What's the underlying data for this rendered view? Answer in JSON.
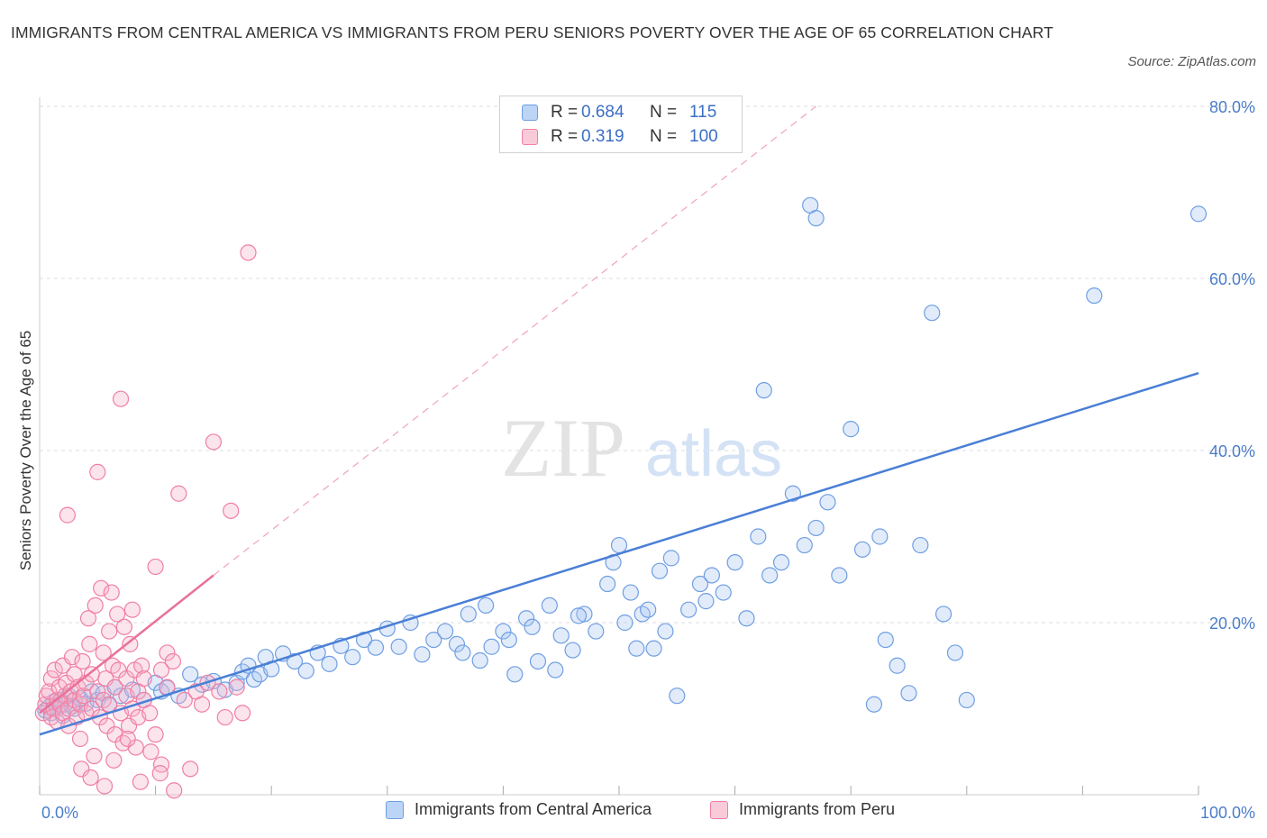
{
  "header": {
    "title": "IMMIGRANTS FROM CENTRAL AMERICA VS IMMIGRANTS FROM PERU SENIORS POVERTY OVER THE AGE OF 65 CORRELATION CHART",
    "source": "Source: ZipAtlas.com"
  },
  "legend": {
    "rows": [
      {
        "r_label": "R =",
        "r_value": "0.684",
        "n_label": "N =",
        "n_value": "115",
        "color": "#6f9fe3"
      },
      {
        "r_label": "R =",
        "r_value": "0.319",
        "n_label": "N =",
        "n_value": "100",
        "color": "#f07fa4"
      }
    ],
    "bottom": [
      "Immigrants from Central America",
      "Immigrants from Peru"
    ]
  },
  "colors": {
    "blue": "#4a7fd6",
    "pink": "#e8729a",
    "blue_fill": "#a9c6f0",
    "pink_fill": "#f5b3c8",
    "tick": "#4a7dc9"
  },
  "chart_data": {
    "type": "scatter",
    "title": "IMMIGRANTS FROM CENTRAL AMERICA VS IMMIGRANTS FROM PERU SENIORS POVERTY OVER THE AGE OF 65 CORRELATION CHART",
    "xlabel": "",
    "ylabel": "Seniors Poverty Over the Age of 65",
    "xlim": [
      0,
      100
    ],
    "ylim": [
      0,
      80
    ],
    "x_tick_labels": [
      "0.0%",
      "100.0%"
    ],
    "y_ticks": [
      20,
      40,
      60,
      80
    ],
    "y_tick_labels": [
      "20.0%",
      "40.0%",
      "60.0%",
      "80.0%"
    ],
    "grid": true,
    "watermark": "ZIPatlas",
    "series": [
      {
        "name": "Immigrants from Central America",
        "color": "#4a7fd6",
        "trend": {
          "x": [
            0,
            100
          ],
          "y": [
            7.0,
            49.0
          ]
        },
        "points": [
          [
            0.5,
            9.8
          ],
          [
            0.8,
            10.2
          ],
          [
            1.0,
            9.5
          ],
          [
            1.2,
            10.8
          ],
          [
            1.5,
            10.0
          ],
          [
            1.8,
            11.0
          ],
          [
            2.0,
            9.2
          ],
          [
            2.2,
            10.5
          ],
          [
            2.5,
            11.5
          ],
          [
            2.8,
            10.3
          ],
          [
            3.0,
            10.0
          ],
          [
            3.5,
            11.2
          ],
          [
            4.0,
            10.6
          ],
          [
            4.5,
            12.0
          ],
          [
            5.0,
            11.0
          ],
          [
            5.5,
            11.8
          ],
          [
            6.0,
            10.4
          ],
          [
            6.5,
            12.5
          ],
          [
            7.0,
            11.5
          ],
          [
            8.0,
            12.2
          ],
          [
            9.0,
            11.0
          ],
          [
            10.0,
            13.0
          ],
          [
            10.5,
            12.0
          ],
          [
            11.0,
            12.4
          ],
          [
            12.0,
            11.5
          ],
          [
            13.0,
            14.0
          ],
          [
            14.0,
            12.8
          ],
          [
            15.0,
            13.2
          ],
          [
            16.0,
            12.2
          ],
          [
            17.0,
            13.0
          ],
          [
            17.5,
            14.3
          ],
          [
            18.0,
            15.0
          ],
          [
            18.5,
            13.4
          ],
          [
            19.0,
            14.0
          ],
          [
            19.5,
            16.0
          ],
          [
            20.0,
            14.6
          ],
          [
            21.0,
            16.4
          ],
          [
            22.0,
            15.5
          ],
          [
            23.0,
            14.4
          ],
          [
            24.0,
            16.5
          ],
          [
            25.0,
            15.2
          ],
          [
            26.0,
            17.3
          ],
          [
            27.0,
            16.0
          ],
          [
            28.0,
            18.0
          ],
          [
            29.0,
            17.1
          ],
          [
            30.0,
            19.3
          ],
          [
            31.0,
            17.2
          ],
          [
            32.0,
            20.0
          ],
          [
            33.0,
            16.3
          ],
          [
            34.0,
            18.0
          ],
          [
            35.0,
            19.0
          ],
          [
            36.0,
            17.5
          ],
          [
            37.0,
            21.0
          ],
          [
            38.0,
            15.6
          ],
          [
            39.0,
            17.2
          ],
          [
            40.0,
            19.0
          ],
          [
            41.0,
            14.0
          ],
          [
            42.0,
            20.5
          ],
          [
            43.0,
            15.5
          ],
          [
            44.0,
            22.0
          ],
          [
            45.0,
            18.5
          ],
          [
            46.0,
            16.8
          ],
          [
            47.0,
            21.0
          ],
          [
            48.0,
            19.0
          ],
          [
            49.0,
            24.5
          ],
          [
            50.0,
            29.0
          ],
          [
            51.0,
            23.5
          ],
          [
            52.0,
            21.0
          ],
          [
            53.0,
            17.0
          ],
          [
            54.0,
            19.0
          ],
          [
            55.0,
            11.5
          ],
          [
            56.0,
            21.5
          ],
          [
            57.0,
            24.5
          ],
          [
            58.0,
            25.5
          ],
          [
            59.0,
            23.5
          ],
          [
            60.0,
            27.0
          ],
          [
            61.0,
            20.5
          ],
          [
            62.0,
            30.0
          ],
          [
            63.0,
            25.5
          ],
          [
            64.0,
            27.0
          ],
          [
            65.0,
            35.0
          ],
          [
            66.0,
            29.0
          ],
          [
            67.0,
            31.0
          ],
          [
            68.0,
            34.0
          ],
          [
            69.0,
            25.5
          ],
          [
            70.0,
            42.5
          ],
          [
            71.0,
            28.5
          ],
          [
            72.0,
            10.5
          ],
          [
            73.0,
            18.0
          ],
          [
            74.0,
            15.0
          ],
          [
            75.0,
            11.8
          ],
          [
            76.0,
            29.0
          ],
          [
            77.0,
            56.0
          ],
          [
            78.0,
            21.0
          ],
          [
            79.0,
            16.5
          ],
          [
            80.0,
            11.0
          ],
          [
            49.5,
            27.0
          ],
          [
            50.5,
            20.0
          ],
          [
            51.5,
            17.0
          ],
          [
            52.5,
            21.5
          ],
          [
            53.5,
            26.0
          ],
          [
            54.5,
            27.5
          ],
          [
            36.5,
            16.5
          ],
          [
            38.5,
            22.0
          ],
          [
            40.5,
            18.0
          ],
          [
            42.5,
            19.5
          ],
          [
            44.5,
            14.5
          ],
          [
            46.5,
            20.8
          ],
          [
            57.5,
            22.5
          ],
          [
            62.5,
            47.0
          ],
          [
            66.5,
            68.5
          ],
          [
            67.0,
            67.0
          ],
          [
            72.5,
            30.0
          ],
          [
            91.0,
            58.0
          ],
          [
            100.0,
            67.5
          ]
        ]
      },
      {
        "name": "Immigrants from Peru",
        "color": "#e8729a",
        "trend": {
          "x": [
            0,
            15
          ],
          "y": [
            9.5,
            25.5
          ]
        },
        "trend_extension": {
          "x": [
            15,
            67
          ],
          "y": [
            25.5,
            80.0
          ]
        },
        "points": [
          [
            0.3,
            9.5
          ],
          [
            0.5,
            10.5
          ],
          [
            0.6,
            11.5
          ],
          [
            0.8,
            12.0
          ],
          [
            1.0,
            9.0
          ],
          [
            1.0,
            13.5
          ],
          [
            1.2,
            10.0
          ],
          [
            1.3,
            14.5
          ],
          [
            1.5,
            11.0
          ],
          [
            1.5,
            8.5
          ],
          [
            1.7,
            12.5
          ],
          [
            1.8,
            10.5
          ],
          [
            2.0,
            9.5
          ],
          [
            2.0,
            15.0
          ],
          [
            2.2,
            11.5
          ],
          [
            2.3,
            13.0
          ],
          [
            2.5,
            10.0
          ],
          [
            2.5,
            8.0
          ],
          [
            2.7,
            12.0
          ],
          [
            2.8,
            16.0
          ],
          [
            3.0,
            11.0
          ],
          [
            3.0,
            14.0
          ],
          [
            3.2,
            9.0
          ],
          [
            3.3,
            12.5
          ],
          [
            3.5,
            10.5
          ],
          [
            3.5,
            6.5
          ],
          [
            3.7,
            15.5
          ],
          [
            3.8,
            11.5
          ],
          [
            4.0,
            13.0
          ],
          [
            4.0,
            9.5
          ],
          [
            4.2,
            20.5
          ],
          [
            4.3,
            17.5
          ],
          [
            4.5,
            10.0
          ],
          [
            4.5,
            14.0
          ],
          [
            4.7,
            4.5
          ],
          [
            4.8,
            22.0
          ],
          [
            5.0,
            12.0
          ],
          [
            5.0,
            37.5
          ],
          [
            5.2,
            9.0
          ],
          [
            5.3,
            24.0
          ],
          [
            5.5,
            16.5
          ],
          [
            5.5,
            11.0
          ],
          [
            5.7,
            13.5
          ],
          [
            5.8,
            8.0
          ],
          [
            6.0,
            19.0
          ],
          [
            6.0,
            10.5
          ],
          [
            6.2,
            23.5
          ],
          [
            6.3,
            15.0
          ],
          [
            6.5,
            12.5
          ],
          [
            6.5,
            7.0
          ],
          [
            6.7,
            21.0
          ],
          [
            6.8,
            14.5
          ],
          [
            7.0,
            9.5
          ],
          [
            7.0,
            46.0
          ],
          [
            7.2,
            6.0
          ],
          [
            7.3,
            19.5
          ],
          [
            7.5,
            11.5
          ],
          [
            7.5,
            13.5
          ],
          [
            7.7,
            8.0
          ],
          [
            7.8,
            17.5
          ],
          [
            8.0,
            10.0
          ],
          [
            8.0,
            21.5
          ],
          [
            8.2,
            14.5
          ],
          [
            8.3,
            5.5
          ],
          [
            8.5,
            12.0
          ],
          [
            8.5,
            9.0
          ],
          [
            8.7,
            1.5
          ],
          [
            8.8,
            15.0
          ],
          [
            9.0,
            11.0
          ],
          [
            9.0,
            13.5
          ],
          [
            9.5,
            9.5
          ],
          [
            10.0,
            26.5
          ],
          [
            10.0,
            7.0
          ],
          [
            10.5,
            14.5
          ],
          [
            10.5,
            3.5
          ],
          [
            11.0,
            12.5
          ],
          [
            11.0,
            16.5
          ],
          [
            11.5,
            15.5
          ],
          [
            12.0,
            35.0
          ],
          [
            12.5,
            11.0
          ],
          [
            13.0,
            3.0
          ],
          [
            13.5,
            12.0
          ],
          [
            14.0,
            10.5
          ],
          [
            14.5,
            13.0
          ],
          [
            15.0,
            41.0
          ],
          [
            15.5,
            12.0
          ],
          [
            16.0,
            9.0
          ],
          [
            16.5,
            33.0
          ],
          [
            17.0,
            12.5
          ],
          [
            17.5,
            9.5
          ],
          [
            18.0,
            63.0
          ],
          [
            3.6,
            3.0
          ],
          [
            4.4,
            2.0
          ],
          [
            5.6,
            1.0
          ],
          [
            6.4,
            4.0
          ],
          [
            7.6,
            6.5
          ],
          [
            9.6,
            5.0
          ],
          [
            10.4,
            2.5
          ],
          [
            11.6,
            0.5
          ],
          [
            2.4,
            32.5
          ]
        ]
      }
    ]
  }
}
